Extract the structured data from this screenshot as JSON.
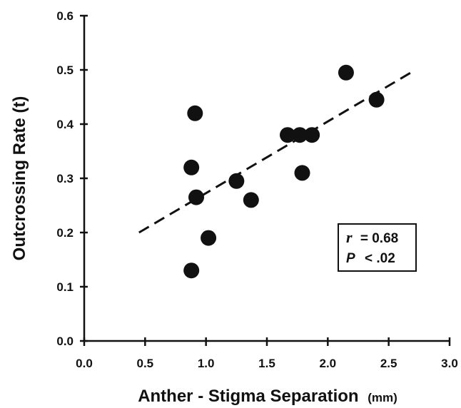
{
  "chart_data": {
    "type": "scatter",
    "xlabel": "Anther - Stigma Separation",
    "xlabel_unit": "(mm)",
    "ylabel": "Outcrossing Rate  (t)",
    "xlim": [
      0.0,
      3.0
    ],
    "ylim": [
      0.0,
      0.6
    ],
    "x_ticks": [
      "0.0",
      "0.5",
      "1.0",
      "1.5",
      "2.0",
      "2.5",
      "3.0"
    ],
    "y_ticks": [
      "0.0",
      "0.1",
      "0.2",
      "0.3",
      "0.4",
      "0.5",
      "0.6"
    ],
    "points": [
      {
        "x": 0.91,
        "y": 0.42
      },
      {
        "x": 0.88,
        "y": 0.32
      },
      {
        "x": 0.92,
        "y": 0.265
      },
      {
        "x": 1.02,
        "y": 0.19
      },
      {
        "x": 0.88,
        "y": 0.13
      },
      {
        "x": 1.25,
        "y": 0.295
      },
      {
        "x": 1.37,
        "y": 0.26
      },
      {
        "x": 1.67,
        "y": 0.38
      },
      {
        "x": 1.77,
        "y": 0.38
      },
      {
        "x": 1.87,
        "y": 0.38
      },
      {
        "x": 1.79,
        "y": 0.31
      },
      {
        "x": 2.15,
        "y": 0.495
      },
      {
        "x": 2.4,
        "y": 0.445
      }
    ],
    "trendline": {
      "style": "dashed",
      "x": [
        0.45,
        2.72
      ],
      "y": [
        0.2,
        0.5
      ]
    },
    "annotation": {
      "r_symbol": "r",
      "r_value": "= 0.68",
      "p_symbol": "P",
      "p_value": "< .02"
    },
    "grid": false,
    "legend": "none"
  }
}
